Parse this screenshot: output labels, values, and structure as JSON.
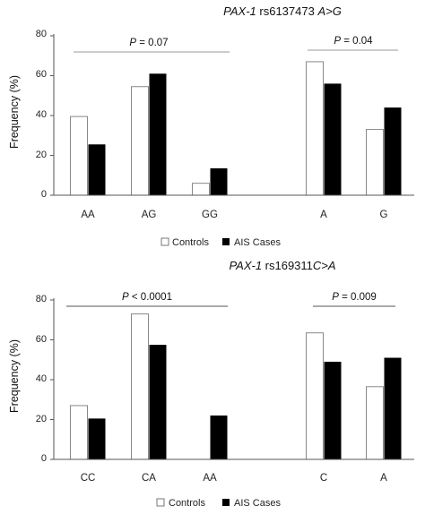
{
  "chart_data": [
    {
      "type": "bar",
      "title_gene": "PAX-1",
      "title_rest": " rs6137473 ",
      "title_variant": "A>G",
      "ylabel": "Frequency (%)",
      "ylim": [
        0,
        80
      ],
      "yticks": [
        "0",
        "20",
        "40",
        "60",
        "80"
      ],
      "grid": false,
      "legend_placement": "bottom-center",
      "categories": [
        "AA",
        "AG",
        "GG",
        "A",
        "G"
      ],
      "series": [
        {
          "name": "Controls",
          "color": "#ffffff",
          "values": [
            39.5,
            54.5,
            6,
            67,
            33
          ]
        },
        {
          "name": "AIS Cases",
          "color": "#000000",
          "values": [
            25.5,
            61,
            13.5,
            56,
            44
          ]
        }
      ],
      "annotations": [
        {
          "italic": "P",
          "text": " = 0.07",
          "span": [
            "AA",
            "GG"
          ]
        },
        {
          "italic": "P",
          "text": " = 0.04",
          "span": [
            "A",
            "G"
          ]
        }
      ]
    },
    {
      "type": "bar",
      "title_gene": "PAX-1",
      "title_rest": " rs169311",
      "title_variant": "C>A",
      "ylabel": "Frequency (%)",
      "ylim": [
        0,
        80
      ],
      "yticks": [
        "0",
        "20",
        "40",
        "60",
        "80"
      ],
      "grid": false,
      "legend_placement": "bottom-center",
      "categories": [
        "CC",
        "CA",
        "AA",
        "C",
        "A"
      ],
      "series": [
        {
          "name": "Controls",
          "color": "#ffffff",
          "values": [
            27,
            73,
            0,
            63.5,
            36.5
          ]
        },
        {
          "name": "AIS Cases",
          "color": "#000000",
          "values": [
            20.5,
            57.5,
            22,
            49,
            51
          ]
        }
      ],
      "annotations": [
        {
          "italic": "P",
          "text": " < 0.0001",
          "span": [
            "CC",
            "AA"
          ]
        },
        {
          "italic": "P",
          "text": " = 0.009",
          "span": [
            "C",
            "A"
          ]
        }
      ]
    }
  ]
}
